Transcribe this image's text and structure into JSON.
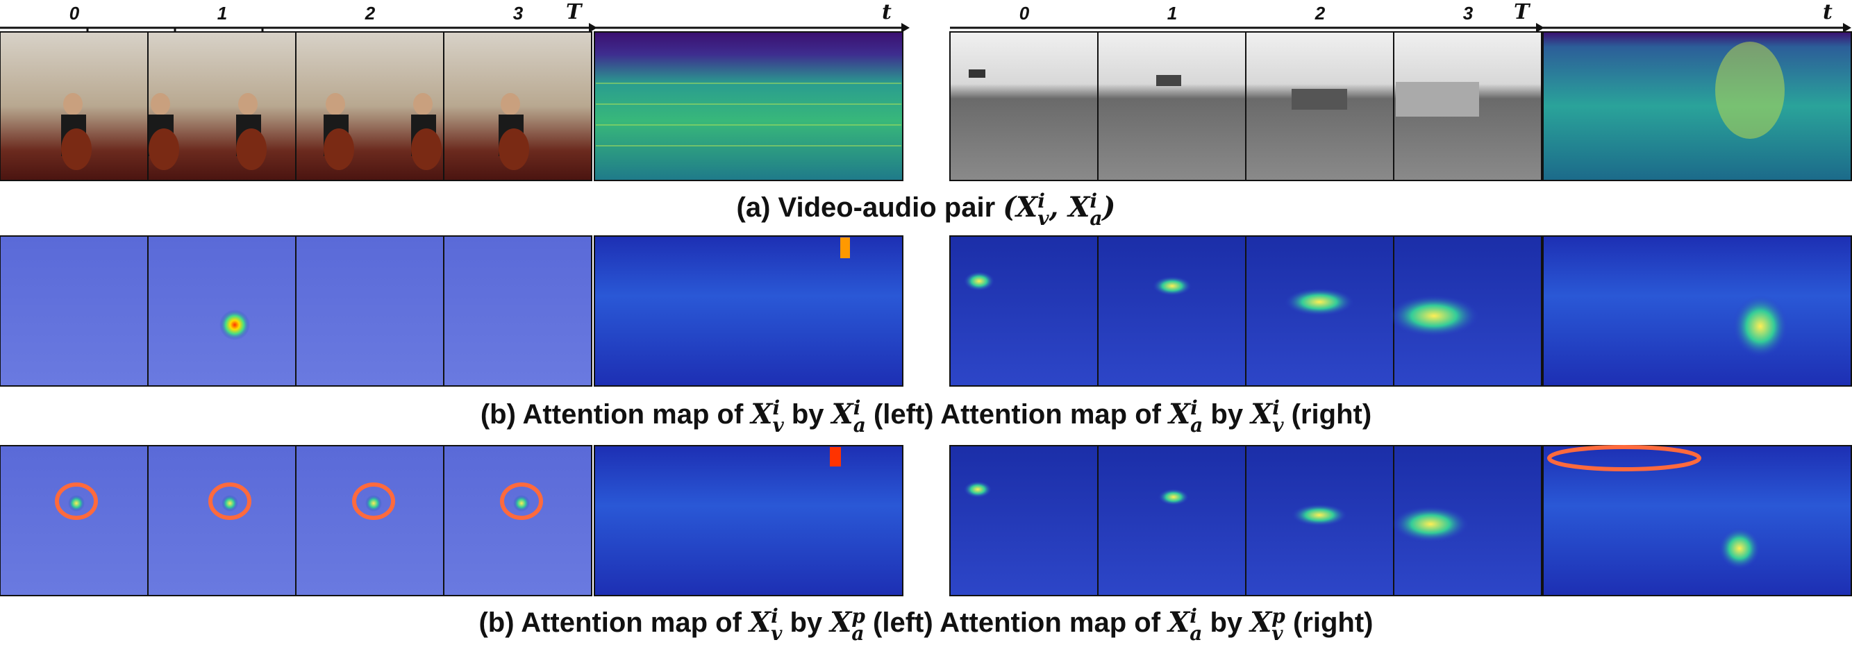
{
  "figure": {
    "left_group": {
      "time_axis_label": "T",
      "audio_axis_label": "t",
      "tick_labels": [
        "0",
        "1",
        "2",
        "3"
      ],
      "scene": "cello"
    },
    "right_group": {
      "time_axis_label": "T",
      "audio_axis_label": "t",
      "tick_labels": [
        "0",
        "1",
        "2",
        "3"
      ],
      "scene": "car"
    },
    "captions": {
      "a": {
        "prefix": "(a) Video-audio pair ",
        "math": "(X_v^i, X_a^i)"
      },
      "b1": {
        "prefix": "(b) Attention map of ",
        "m1": "X_v^i",
        "mid1": " by ",
        "m2": "X_a^i",
        "mid2": " (left) Attention map of ",
        "m3": "X_a^i",
        "mid3": " by ",
        "m4": "X_v^i",
        "suffix": " (right)"
      },
      "b2": {
        "prefix": "(b) Attention map of ",
        "m1": "X_v^i",
        "mid1": " by ",
        "m2": "X_a^p",
        "mid2": " (left) Attention map of ",
        "m3": "X_a^i",
        "mid3": " by ",
        "m4": "X_v^p",
        "suffix": " (right)"
      }
    },
    "colors": {
      "spectrogram_top": "#3b0f6f",
      "spectrogram_mid": "#2a9d8f",
      "attention_bg": "#2a3ac9",
      "highlight_ring": "#ff6a3d",
      "hot": "#ffcc00"
    }
  }
}
